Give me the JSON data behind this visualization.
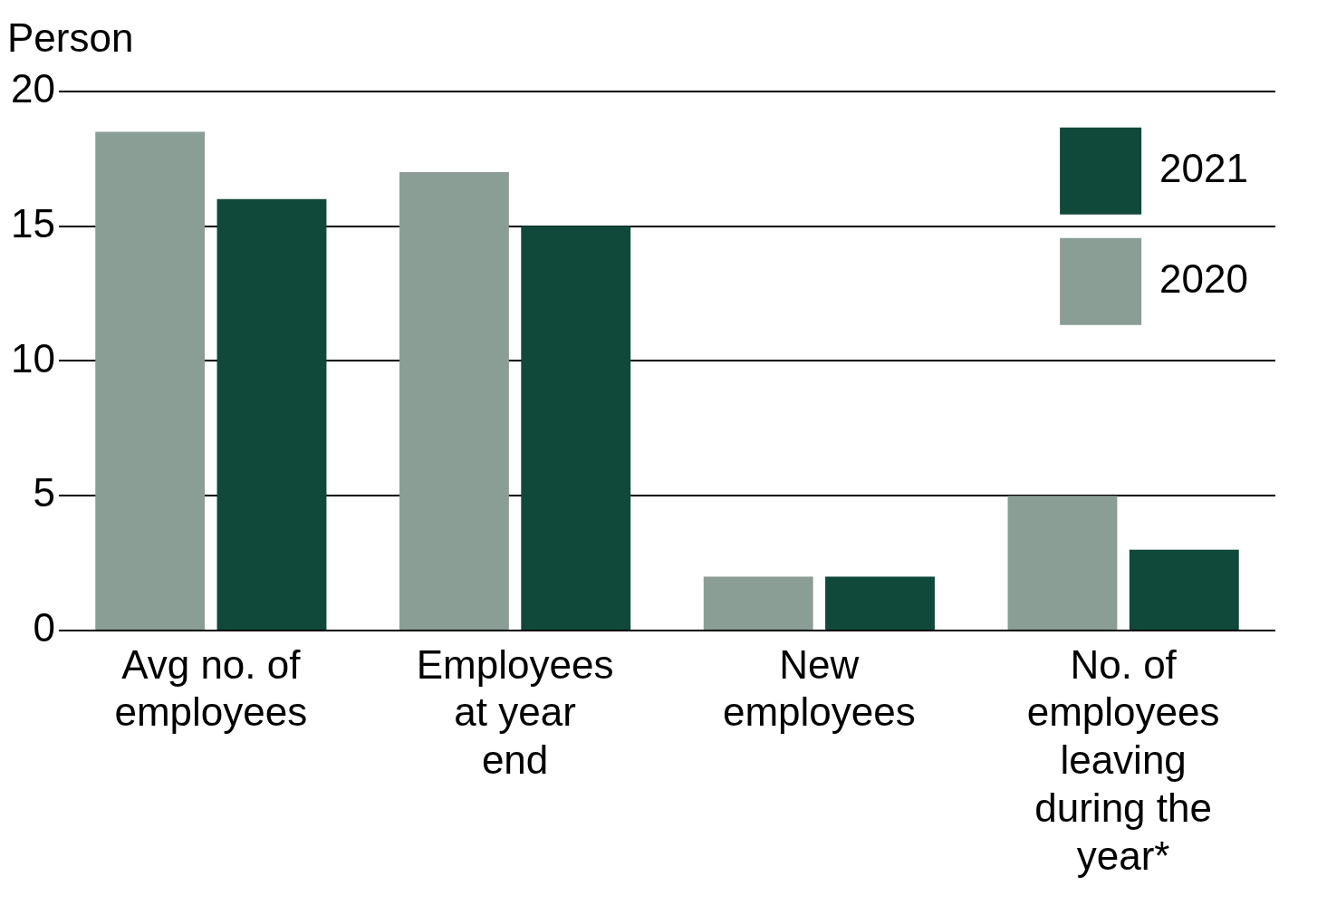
{
  "chart_data": {
    "type": "bar",
    "ylabel": "Person",
    "categories": [
      "Avg no. of employees",
      "Employees at year end",
      "New employees",
      "No. of employees leaving during the year*"
    ],
    "series": [
      {
        "name": "2020",
        "color": "#8a9e96",
        "values": [
          18.5,
          17,
          2,
          5
        ]
      },
      {
        "name": "2021",
        "color": "#10493a",
        "values": [
          16,
          15,
          2,
          3
        ]
      }
    ],
    "ylim": [
      0,
      20
    ],
    "yticks": [
      0,
      5,
      10,
      15,
      20
    ],
    "grid": "y",
    "legend": "top right"
  }
}
